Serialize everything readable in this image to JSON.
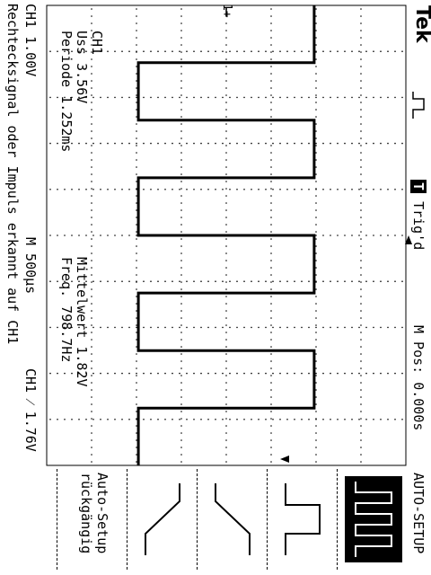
{
  "header": {
    "brand": "Tek",
    "trigger_status": "Trig'd",
    "trigger_status_icon": "T",
    "position": "M Pos: 0.000s",
    "menu_title": "AUTO-SETUP"
  },
  "measurements": {
    "channel": "CH1",
    "uss": "Uss 3.56V",
    "period": "Periode 1.252ms",
    "mean": "Mittelwert 1.82V",
    "freq": "Freq. 798.7Hz"
  },
  "footer": {
    "ch1_scale": "CH1  1.00V",
    "timebase": "M 500µs",
    "trigger_setting": "CH1  ⁄  1.76V",
    "message": "Rechtecksignal oder Impuls erkannt auf CH1"
  },
  "menu": {
    "undo_line1": "Auto-Setup",
    "undo_line2": "rückgängig"
  },
  "markers": {
    "channel_marker": "1+"
  },
  "waveform": {
    "type": "square",
    "frequency_hz": 798.7,
    "period_ms": 1.252,
    "amplitude_v": 3.56,
    "mean_v": 1.82,
    "trigger_level_v": 1.76,
    "volts_per_div": 1.0,
    "time_per_div_us": 500
  }
}
